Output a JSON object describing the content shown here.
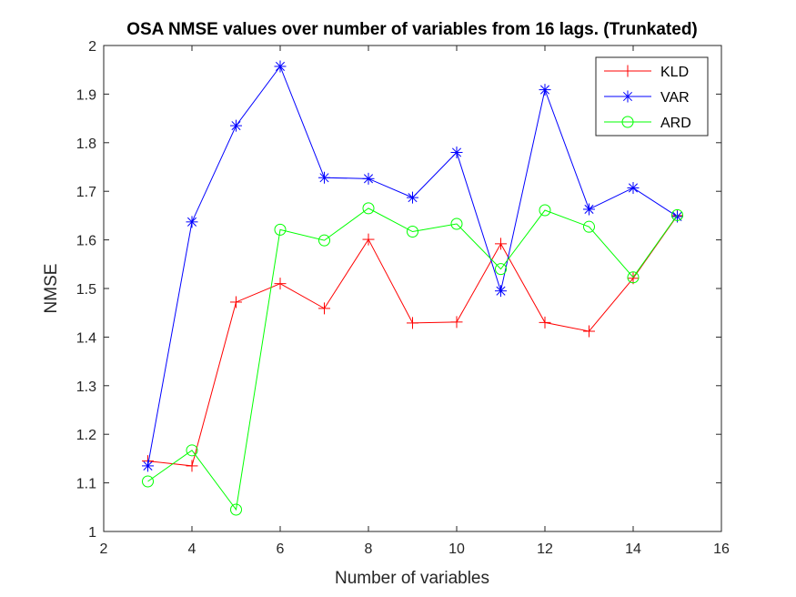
{
  "chart_data": {
    "type": "line",
    "title": "OSA NMSE values over number of variables from 16 lags. (Trunkated)",
    "xlabel": "Number of variables",
    "ylabel": "NMSE",
    "xlim": [
      2,
      16
    ],
    "ylim": [
      1,
      2
    ],
    "xticks": [
      "2",
      "4",
      "6",
      "8",
      "10",
      "12",
      "14",
      "16"
    ],
    "yticks": [
      "1",
      "1.1",
      "1.2",
      "1.3",
      "1.4",
      "1.5",
      "1.6",
      "1.7",
      "1.8",
      "1.9",
      "2"
    ],
    "grid": false,
    "legend_position": "top-right",
    "x": [
      3,
      4,
      5,
      6,
      7,
      8,
      9,
      10,
      11,
      12,
      13,
      14,
      15
    ],
    "series": [
      {
        "name": "KLD",
        "color": "#ff0000",
        "marker": "plus",
        "values": [
          1.145,
          1.135,
          1.472,
          1.51,
          1.459,
          1.601,
          1.429,
          1.431,
          1.592,
          1.43,
          1.412,
          1.521,
          1.65
        ]
      },
      {
        "name": "VAR",
        "color": "#0000ff",
        "marker": "asterisk",
        "values": [
          1.135,
          1.637,
          1.835,
          1.957,
          1.728,
          1.726,
          1.687,
          1.78,
          1.495,
          1.909,
          1.663,
          1.707,
          1.648
        ]
      },
      {
        "name": "ARD",
        "color": "#00ff00",
        "marker": "circle",
        "values": [
          1.103,
          1.167,
          1.045,
          1.621,
          1.599,
          1.665,
          1.617,
          1.633,
          1.54,
          1.661,
          1.627,
          1.523,
          1.651
        ]
      }
    ]
  }
}
